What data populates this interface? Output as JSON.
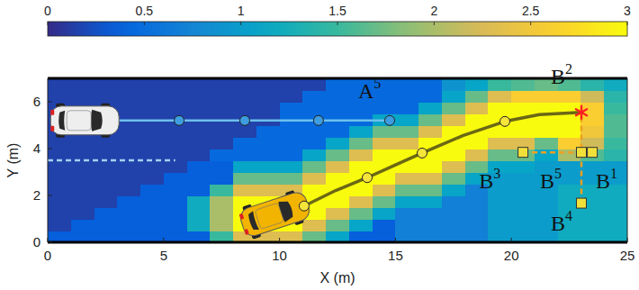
{
  "chart_data": {
    "type": "heatmap",
    "x_label": "X (m)",
    "y_label": "Y (m)",
    "xlim": [
      0,
      25
    ],
    "ylim": [
      0,
      7
    ],
    "xticks": [
      0,
      5,
      10,
      15,
      20,
      25
    ],
    "yticks": [
      0,
      2,
      4,
      6
    ],
    "grid": false,
    "heatmap": {
      "x_edges": [
        0,
        1,
        2,
        3,
        4,
        5,
        6,
        7,
        8,
        9,
        10,
        11,
        12,
        13,
        14,
        15,
        16,
        17,
        18,
        19,
        20,
        21,
        22,
        23,
        24,
        25
      ],
      "y_edges": [
        0,
        0.5,
        1,
        1.5,
        2,
        2.5,
        3,
        3.5,
        4,
        4.5,
        5,
        5.5,
        6,
        6.5,
        7
      ],
      "cells": [
        [
          0.35,
          0.35,
          0.35,
          0.35,
          0.35,
          0.35,
          0.35,
          1.5,
          2.3,
          2.3,
          2.3,
          1.7,
          1.1,
          0.35,
          0.35,
          0.7,
          0.7,
          0.7,
          0.7,
          1.0,
          1.0,
          1.0,
          1.2,
          1.2,
          1.2
        ],
        [
          0.15,
          0.35,
          0.35,
          0.35,
          0.35,
          0.35,
          1.2,
          2.0,
          3,
          3,
          3,
          2.3,
          1.7,
          1.1,
          0.35,
          0.7,
          0.7,
          0.7,
          0.7,
          1.0,
          1.0,
          1.0,
          1.2,
          1.2,
          1.2
        ],
        [
          0.15,
          0.15,
          0.35,
          0.35,
          0.35,
          0.35,
          1.2,
          2.0,
          3,
          3,
          3,
          3,
          2.3,
          1.7,
          1.1,
          0.7,
          0.7,
          0.7,
          0.7,
          1.0,
          1.0,
          1.0,
          1.2,
          1.2,
          1.2
        ],
        [
          0.15,
          0.15,
          0.15,
          0.35,
          0.35,
          0.35,
          1.2,
          2.0,
          3,
          3,
          3,
          3,
          3,
          2.3,
          1.7,
          1.1,
          1.1,
          0.7,
          0.7,
          1.0,
          1.0,
          1.0,
          1.2,
          1.2,
          1.2
        ],
        [
          0.15,
          0.15,
          0.15,
          0.15,
          0.35,
          0.35,
          0.35,
          1.5,
          2.3,
          2.3,
          2.3,
          3,
          3,
          3,
          2.3,
          1.7,
          1.7,
          1.1,
          0.7,
          1.0,
          1.0,
          1.0,
          1.2,
          1.2,
          1.2
        ],
        [
          0.15,
          0.15,
          0.15,
          0.15,
          0.15,
          0.35,
          0.35,
          0.35,
          1.7,
          1.7,
          1.7,
          2.3,
          3,
          3,
          3,
          2.3,
          2.3,
          1.7,
          1.1,
          1.0,
          1.0,
          1.0,
          1.0,
          1.0,
          1.0
        ],
        [
          0.15,
          0.15,
          0.15,
          0.15,
          0.15,
          0.15,
          0.35,
          0.35,
          1.1,
          1.1,
          1.1,
          1.7,
          2.3,
          3,
          3,
          3,
          3,
          2.3,
          1.7,
          1.1,
          1.1,
          1.0,
          1.0,
          1.0,
          1.0
        ],
        [
          0.15,
          0.15,
          0.15,
          0.15,
          0.15,
          0.15,
          0.15,
          0.45,
          0.45,
          0.45,
          0.45,
          1.1,
          1.7,
          2.3,
          3,
          3,
          3,
          3,
          2.3,
          1.7,
          1.7,
          1.1,
          2.0,
          1.6,
          1.4
        ],
        [
          0.15,
          0.15,
          0.15,
          0.15,
          0.15,
          0.15,
          0.15,
          0.15,
          0.45,
          0.45,
          0.45,
          0.45,
          1.1,
          1.7,
          2.3,
          2.3,
          3,
          3,
          3,
          2.3,
          2.3,
          1.7,
          2.6,
          2.2,
          1.5
        ],
        [
          0.15,
          0.15,
          0.15,
          0.15,
          0.15,
          0.15,
          0.15,
          0.15,
          0.15,
          0.45,
          0.45,
          0.45,
          0.45,
          1.1,
          1.7,
          1.7,
          2.3,
          3,
          3,
          3,
          3,
          3,
          3,
          2.5,
          1.6
        ],
        [
          0.15,
          0.15,
          0.15,
          0.15,
          0.15,
          0.15,
          0.15,
          0.15,
          0.15,
          0.15,
          0.45,
          0.45,
          0.45,
          0.45,
          1.1,
          1.1,
          1.7,
          2.3,
          3,
          3,
          3,
          3,
          3,
          2.6,
          1.6
        ],
        [
          0.15,
          0.15,
          0.15,
          0.15,
          0.15,
          0.15,
          0.15,
          0.15,
          0.15,
          0.15,
          0.45,
          0.45,
          0.45,
          0.45,
          0.45,
          0.45,
          1.1,
          1.7,
          2.3,
          3,
          3,
          3,
          3,
          2.6,
          1.5
        ],
        [
          0.15,
          0.15,
          0.15,
          0.15,
          0.15,
          0.15,
          0.15,
          0.15,
          0.15,
          0.15,
          0.15,
          0.45,
          0.45,
          0.45,
          0.45,
          0.45,
          0.45,
          1.1,
          1.7,
          2.3,
          2.6,
          2.6,
          2.6,
          2.2,
          1.4
        ],
        [
          0.15,
          0.15,
          0.15,
          0.15,
          0.15,
          0.15,
          0.15,
          0.15,
          0.15,
          0.15,
          0.15,
          0.15,
          0.45,
          0.45,
          0.45,
          0.45,
          0.45,
          0.9,
          1.1,
          1.5,
          1.6,
          1.7,
          1.6,
          1.4,
          1.2
        ]
      ]
    },
    "colorbar": {
      "lim": [
        0,
        3
      ],
      "ticks": [
        0,
        0.5,
        1,
        1.5,
        2,
        2.5,
        3
      ]
    },
    "series": [
      {
        "color": "#6b6814",
        "line_style": "solid",
        "marker": "none",
        "x": [
          11.06,
          12.4,
          13.78,
          15.0,
          16.15,
          17.9,
          19.72,
          21.2,
          23.02
        ],
        "values": [
          1.55,
          2.2,
          2.76,
          3.3,
          3.81,
          4.55,
          5.16,
          5.45,
          5.55
        ]
      },
      {
        "color": "#f5e43a",
        "line_style": "none",
        "marker": "circle",
        "x": [
          11.06,
          13.78,
          16.15,
          19.72
        ],
        "values": [
          1.55,
          2.76,
          3.81,
          5.16
        ]
      },
      {
        "color": "#6cc0ec",
        "line_style": "solid",
        "marker": "none",
        "x": [
          2.5,
          14.75
        ],
        "values": [
          5.2,
          5.2
        ]
      },
      {
        "color": "#3d9de0",
        "line_style": "none",
        "marker": "circle",
        "x": [
          5.67,
          8.5,
          11.68,
          14.75
        ],
        "values": [
          5.2,
          5.2,
          5.2,
          5.2
        ]
      },
      {
        "color": "#f2e03a",
        "line_style": "none",
        "marker": "square",
        "x": [
          23.49,
          20.5,
          23.02,
          23.02
        ],
        "values": [
          3.84,
          3.84,
          1.67,
          3.84
        ]
      },
      {
        "color": "#ff1f1f",
        "line_style": "none",
        "marker": "star",
        "x": [
          23.02
        ],
        "values": [
          5.55
        ]
      },
      {
        "color": "#f0a020",
        "line_style": "dashed",
        "marker": "none",
        "x": [
          20.5,
          23.49
        ],
        "values": [
          3.84,
          3.84
        ]
      },
      {
        "color": "#f0a020",
        "line_style": "dashed",
        "marker": "none",
        "x": [
          23.02,
          23.02
        ],
        "values": [
          1.67,
          5.55
        ]
      },
      {
        "color": "#9fd3f0",
        "line_style": "dashed",
        "marker": "none",
        "x": [
          0,
          5.5
        ],
        "values": [
          3.5,
          3.5
        ]
      }
    ],
    "vehicles": [
      {
        "x": 9.8,
        "y": 1.2,
        "color": "#f2b400"
      },
      {
        "x": 1.6,
        "y": 5.2,
        "color": "#eeeeee"
      }
    ],
    "annotations": [
      {
        "text": "A",
        "sup": "5",
        "x": 13.39,
        "y": 6.17
      },
      {
        "text": "B",
        "sup": "2",
        "x": 21.7,
        "y": 6.76
      },
      {
        "text": "B",
        "sup": "3",
        "x": 18.6,
        "y": 2.29
      },
      {
        "text": "B",
        "sup": "5",
        "x": 21.23,
        "y": 2.29
      },
      {
        "text": "B",
        "sup": "1",
        "x": 23.64,
        "y": 2.29
      },
      {
        "text": "B",
        "sup": "4",
        "x": 21.7,
        "y": 0.5
      }
    ]
  }
}
